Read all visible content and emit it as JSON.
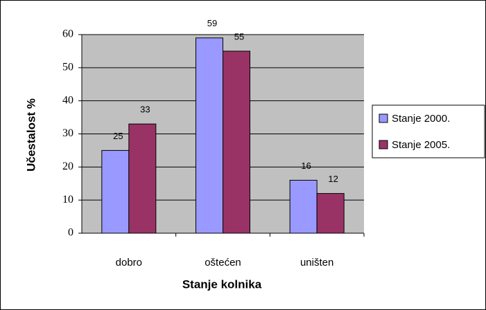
{
  "chart_data": {
    "type": "bar",
    "categories": [
      "dobro",
      "oštećen",
      "uništen"
    ],
    "series": [
      {
        "name": "Stanje 2000.",
        "color": "#9999ff",
        "values": [
          25,
          59,
          16
        ]
      },
      {
        "name": "Stanje 2005.",
        "color": "#993366",
        "values": [
          33,
          55,
          12
        ]
      }
    ],
    "xlabel": "Stanje kolnika",
    "ylabel": "Učestalost %",
    "ylim": [
      0,
      60
    ],
    "yticks": [
      0,
      10,
      20,
      30,
      40,
      50,
      60
    ],
    "grid": true,
    "legend": "right",
    "plot_background": "#c0c0c0",
    "show_value_labels": true
  }
}
